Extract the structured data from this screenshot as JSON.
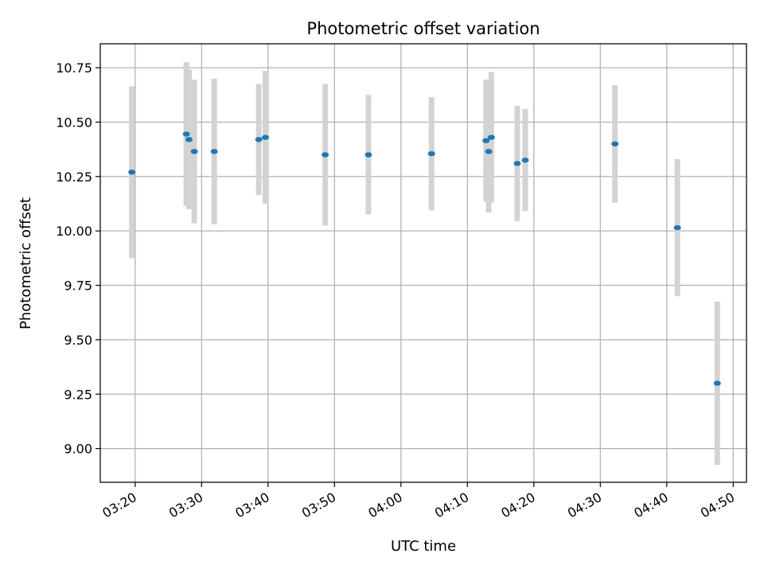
{
  "chart_data": {
    "type": "scatter",
    "title": "Photometric offset variation",
    "xlabel": "UTC time",
    "ylabel": "Photometric offset",
    "x_unit": "minutes",
    "xlim": [
      "03:14:45",
      "04:52:00"
    ],
    "ylim": [
      8.845,
      10.86
    ],
    "grid": true,
    "x_ticks": [
      "03:20",
      "03:30",
      "03:40",
      "03:50",
      "04:00",
      "04:10",
      "04:20",
      "04:30",
      "04:40",
      "04:50"
    ],
    "y_ticks": [
      "9.00",
      "9.25",
      "9.50",
      "9.75",
      "10.00",
      "10.25",
      "10.50",
      "10.75"
    ],
    "point_color": "#1f77b4",
    "errorbar_color": "#d3d3d3",
    "points": [
      {
        "x": "03:19:30",
        "y": 10.27,
        "err": 0.395
      },
      {
        "x": "03:27:42",
        "y": 10.445,
        "err": 0.33
      },
      {
        "x": "03:28:06",
        "y": 10.42,
        "err": 0.32
      },
      {
        "x": "03:28:54",
        "y": 10.365,
        "err": 0.33
      },
      {
        "x": "03:31:54",
        "y": 10.365,
        "err": 0.335
      },
      {
        "x": "03:38:36",
        "y": 10.42,
        "err": 0.255
      },
      {
        "x": "03:39:36",
        "y": 10.43,
        "err": 0.305
      },
      {
        "x": "03:48:36",
        "y": 10.35,
        "err": 0.325
      },
      {
        "x": "03:55:06",
        "y": 10.35,
        "err": 0.275
      },
      {
        "x": "04:04:36",
        "y": 10.355,
        "err": 0.26
      },
      {
        "x": "04:12:48",
        "y": 10.415,
        "err": 0.28
      },
      {
        "x": "04:13:12",
        "y": 10.365,
        "err": 0.28
      },
      {
        "x": "04:13:36",
        "y": 10.43,
        "err": 0.3
      },
      {
        "x": "04:17:30",
        "y": 10.31,
        "err": 0.265
      },
      {
        "x": "04:18:42",
        "y": 10.325,
        "err": 0.235
      },
      {
        "x": "04:32:12",
        "y": 10.4,
        "err": 0.27
      },
      {
        "x": "04:41:36",
        "y": 10.015,
        "err": 0.315
      },
      {
        "x": "04:47:36",
        "y": 9.3,
        "err": 0.375
      }
    ]
  }
}
